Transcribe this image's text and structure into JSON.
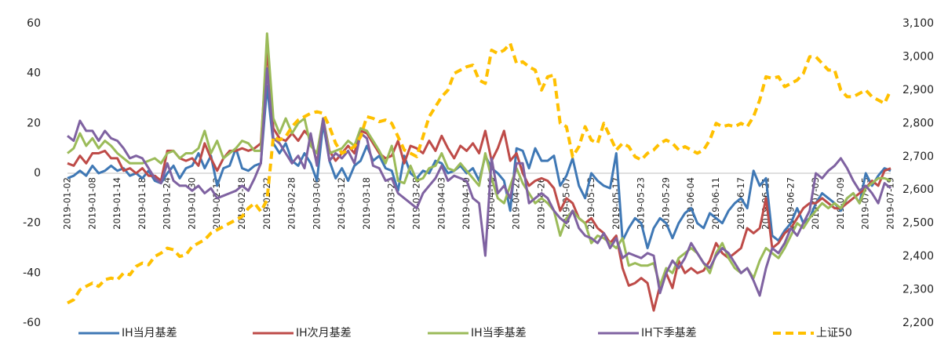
{
  "chart_data": {
    "type": "line",
    "categories": [
      "2019-01-02",
      null,
      null,
      null,
      "2019-01-08",
      null,
      null,
      null,
      "2019-01-14",
      null,
      null,
      null,
      "2019-01-18",
      null,
      null,
      null,
      "2019-01-24",
      null,
      null,
      null,
      "2019-01-30",
      null,
      null,
      null,
      "2019-02-12",
      null,
      null,
      null,
      "2019-02-18",
      null,
      null,
      null,
      "2019-02-22",
      null,
      null,
      null,
      "2019-02-28",
      null,
      null,
      null,
      "2019-03-06",
      null,
      null,
      null,
      "2019-03-12",
      null,
      null,
      null,
      "2019-03-18",
      null,
      null,
      null,
      "2019-03-22",
      null,
      null,
      null,
      "2019-03-28",
      null,
      null,
      null,
      "2019-04-03",
      null,
      null,
      null,
      "2019-04-10",
      null,
      null,
      null,
      "2019-04-16",
      null,
      null,
      null,
      "2019-04-22",
      null,
      null,
      null,
      "2019-04-26",
      null,
      null,
      null,
      "2019-05-07",
      null,
      null,
      null,
      "2019-05-13",
      null,
      null,
      null,
      "2019-05-17",
      null,
      null,
      null,
      "2019-05-23",
      null,
      null,
      null,
      "2019-05-29",
      null,
      null,
      null,
      "2019-06-04",
      null,
      null,
      null,
      "2019-06-11",
      null,
      null,
      null,
      "2019-06-17",
      null,
      null,
      null,
      "2019-06-21",
      null,
      null,
      null,
      "2019-06-27",
      null,
      null,
      null,
      "2019-07-03",
      null,
      null,
      null,
      "2019-07-09",
      null,
      null,
      null,
      "2019-07-15",
      null,
      null,
      null,
      "2019-07-19"
    ],
    "series": [
      {
        "name": "IH当月基差",
        "color": "#3f78b5",
        "values": [
          -2,
          -1,
          1,
          -1,
          3,
          0,
          1,
          3,
          1,
          2,
          -1,
          0,
          -2,
          1,
          -3,
          -4,
          0,
          3,
          -2,
          2,
          3,
          8,
          2,
          7,
          -5,
          2,
          3,
          10,
          2,
          1,
          3,
          4,
          35,
          12,
          8,
          12,
          5,
          3,
          8,
          4,
          -3,
          20,
          5,
          -2,
          2,
          -3,
          3,
          5,
          11,
          5,
          7,
          2,
          1,
          -7,
          7,
          0,
          -2,
          1,
          0,
          5,
          4,
          0,
          1,
          3,
          0,
          2,
          -3,
          7,
          2,
          0,
          -3,
          -15,
          10,
          9,
          2,
          10,
          5,
          5,
          7,
          -5,
          -1,
          6,
          -5,
          -10,
          0,
          -3,
          -5,
          -6,
          8,
          -27,
          -22,
          -18,
          -20,
          -30,
          -22,
          -18,
          -20,
          -26,
          -20,
          -16,
          -14,
          -20,
          -22,
          -16,
          -18,
          -20,
          -15,
          -12,
          -10,
          -14,
          1,
          -5,
          -2,
          -25,
          -27,
          -23,
          -20,
          -14,
          -20,
          -18,
          -12,
          -8,
          -10,
          -12,
          -15,
          -10,
          -8,
          -12,
          0,
          -5,
          -1,
          2,
          1
        ]
      },
      {
        "name": "IH次月基差",
        "color": "#be4b48",
        "values": [
          4,
          3,
          7,
          4,
          8,
          8,
          9,
          6,
          6,
          1,
          2,
          0,
          2,
          -1,
          -1,
          -3,
          9,
          9,
          6,
          5,
          6,
          3,
          12,
          6,
          1,
          6,
          9,
          9,
          10,
          9,
          10,
          12,
          50,
          18,
          14,
          13,
          16,
          13,
          17,
          14,
          4,
          22,
          9,
          5,
          8,
          11,
          8,
          17,
          16,
          12,
          8,
          6,
          7,
          13,
          4,
          11,
          10,
          8,
          13,
          9,
          15,
          10,
          6,
          11,
          9,
          12,
          8,
          17,
          5,
          10,
          17,
          5,
          8,
          0,
          -5,
          -3,
          -2,
          -3,
          -6,
          -15,
          -10,
          -12,
          -18,
          -20,
          -18,
          -22,
          -24,
          -28,
          -25,
          -38,
          -45,
          -44,
          -42,
          -44,
          -55,
          -45,
          -40,
          -46,
          -35,
          -40,
          -38,
          -40,
          -39,
          -35,
          -28,
          -32,
          -34,
          -32,
          -30,
          -22,
          -24,
          -22,
          -10,
          -30,
          -28,
          -24,
          -22,
          -18,
          -14,
          -12,
          -12,
          -10,
          -12,
          -14,
          -14,
          -12,
          -10,
          -8,
          -6,
          -3,
          -5,
          1,
          2
        ]
      },
      {
        "name": "IH当季基差",
        "color": "#9bbb59",
        "values": [
          8,
          10,
          16,
          11,
          14,
          10,
          13,
          11,
          8,
          6,
          4,
          4,
          4,
          5,
          6,
          4,
          8,
          9,
          6,
          8,
          8,
          10,
          17,
          8,
          13,
          6,
          8,
          10,
          13,
          12,
          9,
          9,
          56,
          22,
          16,
          22,
          16,
          20,
          22,
          11,
          8,
          22,
          8,
          9,
          10,
          13,
          11,
          18,
          17,
          13,
          9,
          4,
          11,
          -3,
          -4,
          3,
          -3,
          -2,
          2,
          3,
          8,
          2,
          1,
          4,
          1,
          -2,
          -5,
          8,
          -2,
          -10,
          -12,
          -5,
          2,
          -4,
          -8,
          -12,
          -10,
          -12,
          -15,
          -25,
          -18,
          -15,
          -18,
          -20,
          -28,
          -25,
          -26,
          -28,
          -30,
          -26,
          -37,
          -36,
          -37,
          -37,
          -36,
          -45,
          -38,
          -40,
          -34,
          -32,
          -30,
          -32,
          -36,
          -40,
          -32,
          -28,
          -34,
          -38,
          -40,
          -38,
          -42,
          -35,
          -30,
          -32,
          -34,
          -30,
          -25,
          -20,
          -22,
          -18,
          -15,
          -12,
          -14,
          -12,
          -14,
          -10,
          -8,
          -12,
          -6,
          -4,
          -2,
          -2,
          -3
        ]
      },
      {
        "name": "IH下季基差",
        "color": "#7f62a1",
        "values": [
          15,
          13,
          21,
          17,
          17,
          13,
          17,
          14,
          13,
          10,
          6,
          7,
          6,
          2,
          -2,
          -4,
          4,
          -3,
          -5,
          -5,
          -7,
          -5,
          -8,
          -6,
          -10,
          -9,
          -8,
          -7,
          -5,
          -7,
          -2,
          4,
          42,
          14,
          12,
          8,
          4,
          7,
          2,
          16,
          3,
          22,
          5,
          8,
          6,
          9,
          4,
          16,
          14,
          3,
          2,
          -3,
          -2,
          -8,
          -10,
          -12,
          -14,
          -8,
          -5,
          -2,
          3,
          -3,
          -1,
          -2,
          -3,
          -10,
          -12,
          -33,
          6,
          -8,
          -5,
          -10,
          4,
          4,
          -12,
          -10,
          -8,
          -10,
          -15,
          -18,
          -20,
          -15,
          -22,
          -25,
          -26,
          -28,
          -24,
          -30,
          -26,
          -34,
          -32,
          -33,
          -34,
          -32,
          -33,
          -48,
          -40,
          -35,
          -38,
          -34,
          -28,
          -32,
          -36,
          -38,
          -33,
          -30,
          -32,
          -36,
          -40,
          -38,
          -43,
          -49,
          -38,
          -30,
          -32,
          -28,
          -22,
          -25,
          -20,
          -15,
          0,
          -2,
          1,
          3,
          6,
          2,
          -3,
          -7,
          -5,
          -8,
          -12,
          -4,
          -6
        ]
      },
      {
        "name": "上证50",
        "color": "#ffc000",
        "axis": "y2",
        "line_style": "dashed",
        "values": [
          2260,
          2270,
          2300,
          2310,
          2320,
          2310,
          2330,
          2335,
          2330,
          2350,
          2345,
          2370,
          2380,
          2375,
          2400,
          2410,
          2425,
          2420,
          2400,
          2405,
          2430,
          2440,
          2450,
          2470,
          2480,
          2490,
          2500,
          2510,
          2520,
          2545,
          2560,
          2535,
          2570,
          2760,
          2750,
          2760,
          2790,
          2810,
          2820,
          2830,
          2835,
          2830,
          2790,
          2740,
          2710,
          2720,
          2730,
          2760,
          2820,
          2815,
          2805,
          2810,
          2800,
          2760,
          2720,
          2710,
          2700,
          2760,
          2820,
          2850,
          2880,
          2900,
          2950,
          2960,
          2970,
          2975,
          2930,
          2920,
          3020,
          3010,
          3020,
          3040,
          2980,
          2985,
          2970,
          2960,
          2900,
          2940,
          2945,
          2800,
          2790,
          2700,
          2730,
          2790,
          2750,
          2740,
          2800,
          2760,
          2720,
          2740,
          2730,
          2700,
          2690,
          2710,
          2720,
          2740,
          2750,
          2740,
          2720,
          2730,
          2720,
          2710,
          2720,
          2750,
          2800,
          2790,
          2795,
          2790,
          2800,
          2790,
          2820,
          2870,
          2940,
          2935,
          2940,
          2910,
          2920,
          2930,
          2950,
          3000,
          3000,
          2980,
          2960,
          2960,
          2900,
          2880,
          2880,
          2890,
          2900,
          2880,
          2870,
          2860,
          2900
        ]
      }
    ],
    "ylim": [
      -60,
      60
    ],
    "yticks": [
      -60,
      -40,
      -20,
      0,
      20,
      40,
      60
    ],
    "y2lim": [
      2200,
      3100
    ],
    "y2ticks": [
      {
        "value": 2200,
        "label": "2,200"
      },
      {
        "value": 2300,
        "label": "2,300"
      },
      {
        "value": 2400,
        "label": "2,400"
      },
      {
        "value": 2500,
        "label": "2,500"
      },
      {
        "value": 2600,
        "label": "2,600"
      },
      {
        "value": 2700,
        "label": "2,700"
      },
      {
        "value": 2800,
        "label": "2,800"
      },
      {
        "value": 2900,
        "label": "2,900"
      },
      {
        "value": 3000,
        "label": "3,000"
      },
      {
        "value": 3100,
        "label": "3,100"
      }
    ],
    "legend": "bottom"
  }
}
